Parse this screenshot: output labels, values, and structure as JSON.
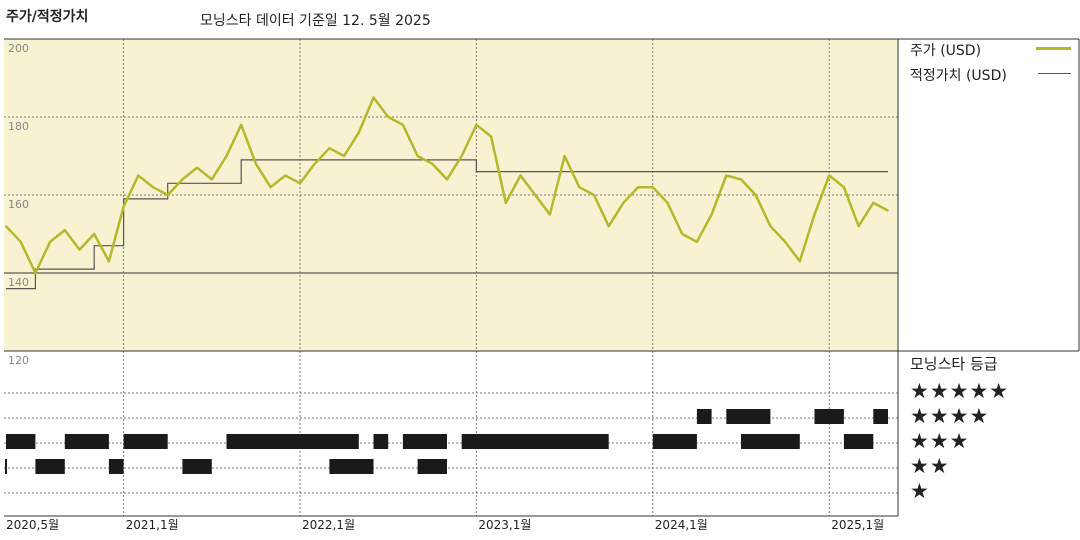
{
  "header": {
    "title": "주가/적정가치",
    "subtitle": "모닝스타 데이터 기준일 12. 5월 2025"
  },
  "legend": {
    "price_label": "주가 (USD)",
    "fair_label": "적정가치 (USD)",
    "price_color": "#b5b82a",
    "fair_color": "#555555",
    "band_color": "#f7f3d2"
  },
  "rating_panel": {
    "title": "모닝스타 등급",
    "stars": [
      "★★★★★",
      "★★★★",
      "★★★",
      "★★",
      "★"
    ]
  },
  "chart_data": {
    "type": "line",
    "title": "",
    "xlabel": "",
    "ylabel": "",
    "ylim": [
      120,
      200
    ],
    "y_ticks": [
      "120",
      "140",
      "160",
      "180",
      "200"
    ],
    "x_ticks": [
      "2020,5월",
      "2021,1월",
      "2022,1월",
      "2023,1월",
      "2024,1월",
      "2025,1월"
    ],
    "x_tick_dates": [
      "2020-05",
      "2021-01",
      "2022-01",
      "2023-01",
      "2024-01",
      "2025-01"
    ],
    "x_range": [
      "2020-05",
      "2025-05"
    ],
    "grid": true,
    "legend_position": "right",
    "series": [
      {
        "name": "주가 (USD)",
        "points": [
          [
            "2020-05",
            152
          ],
          [
            "2020-06",
            148
          ],
          [
            "2020-07",
            140
          ],
          [
            "2020-08",
            148
          ],
          [
            "2020-09",
            151
          ],
          [
            "2020-10",
            146
          ],
          [
            "2020-11",
            150
          ],
          [
            "2020-12",
            143
          ],
          [
            "2021-01",
            157
          ],
          [
            "2021-02",
            165
          ],
          [
            "2021-03",
            162
          ],
          [
            "2021-04",
            160
          ],
          [
            "2021-05",
            164
          ],
          [
            "2021-06",
            167
          ],
          [
            "2021-07",
            164
          ],
          [
            "2021-08",
            170
          ],
          [
            "2021-09",
            178
          ],
          [
            "2021-10",
            168
          ],
          [
            "2021-11",
            162
          ],
          [
            "2021-12",
            165
          ],
          [
            "2022-01",
            163
          ],
          [
            "2022-02",
            168
          ],
          [
            "2022-03",
            172
          ],
          [
            "2022-04",
            170
          ],
          [
            "2022-05",
            176
          ],
          [
            "2022-06",
            185
          ],
          [
            "2022-07",
            180
          ],
          [
            "2022-08",
            178
          ],
          [
            "2022-09",
            170
          ],
          [
            "2022-10",
            168
          ],
          [
            "2022-11",
            164
          ],
          [
            "2022-12",
            170
          ],
          [
            "2023-01",
            178
          ],
          [
            "2023-02",
            175
          ],
          [
            "2023-03",
            158
          ],
          [
            "2023-04",
            165
          ],
          [
            "2023-05",
            160
          ],
          [
            "2023-06",
            155
          ],
          [
            "2023-07",
            170
          ],
          [
            "2023-08",
            162
          ],
          [
            "2023-09",
            160
          ],
          [
            "2023-10",
            152
          ],
          [
            "2023-11",
            158
          ],
          [
            "2023-12",
            162
          ],
          [
            "2024-01",
            162
          ],
          [
            "2024-02",
            158
          ],
          [
            "2024-03",
            150
          ],
          [
            "2024-04",
            148
          ],
          [
            "2024-05",
            155
          ],
          [
            "2024-06",
            165
          ],
          [
            "2024-07",
            164
          ],
          [
            "2024-08",
            160
          ],
          [
            "2024-09",
            152
          ],
          [
            "2024-10",
            148
          ],
          [
            "2024-11",
            143
          ],
          [
            "2024-12",
            155
          ],
          [
            "2025-01",
            165
          ],
          [
            "2025-02",
            162
          ],
          [
            "2025-03",
            152
          ],
          [
            "2025-04",
            158
          ],
          [
            "2025-05",
            156
          ]
        ]
      },
      {
        "name": "적정가치 (USD)",
        "step": true,
        "points": [
          [
            "2020-05",
            136
          ],
          [
            "2020-07",
            141
          ],
          [
            "2020-11",
            147
          ],
          [
            "2021-01",
            159
          ],
          [
            "2021-04",
            163
          ],
          [
            "2021-09",
            169
          ],
          [
            "2023-01",
            166
          ],
          [
            "2025-05",
            166
          ]
        ]
      }
    ],
    "rating_history": [
      {
        "stars": 4,
        "start": "2024-04",
        "end": "2024-05"
      },
      {
        "stars": 4,
        "start": "2024-06",
        "end": "2024-09"
      },
      {
        "stars": 4,
        "start": "2024-12",
        "end": "2025-02"
      },
      {
        "stars": 4,
        "start": "2025-04",
        "end": "2025-05"
      },
      {
        "stars": 3,
        "start": "2020-05",
        "end": "2020-07"
      },
      {
        "stars": 3,
        "start": "2020-09",
        "end": "2020-12"
      },
      {
        "stars": 3,
        "start": "2021-01",
        "end": "2021-04"
      },
      {
        "stars": 3,
        "start": "2021-08",
        "end": "2022-05"
      },
      {
        "stars": 3,
        "start": "2022-06",
        "end": "2022-07"
      },
      {
        "stars": 3,
        "start": "2022-08",
        "end": "2022-11"
      },
      {
        "stars": 3,
        "start": "2022-12",
        "end": "2023-10"
      },
      {
        "stars": 3,
        "start": "2024-01",
        "end": "2024-04"
      },
      {
        "stars": 3,
        "start": "2024-07",
        "end": "2024-11"
      },
      {
        "stars": 3,
        "start": "2025-02",
        "end": "2025-04"
      },
      {
        "stars": 2,
        "start": "2020-04",
        "end": "2020-05"
      },
      {
        "stars": 2,
        "start": "2020-07",
        "end": "2020-09"
      },
      {
        "stars": 2,
        "start": "2020-12",
        "end": "2021-01"
      },
      {
        "stars": 2,
        "start": "2021-05",
        "end": "2021-07"
      },
      {
        "stars": 2,
        "start": "2022-03",
        "end": "2022-06"
      },
      {
        "stars": 2,
        "start": "2022-09",
        "end": "2022-11"
      }
    ]
  }
}
